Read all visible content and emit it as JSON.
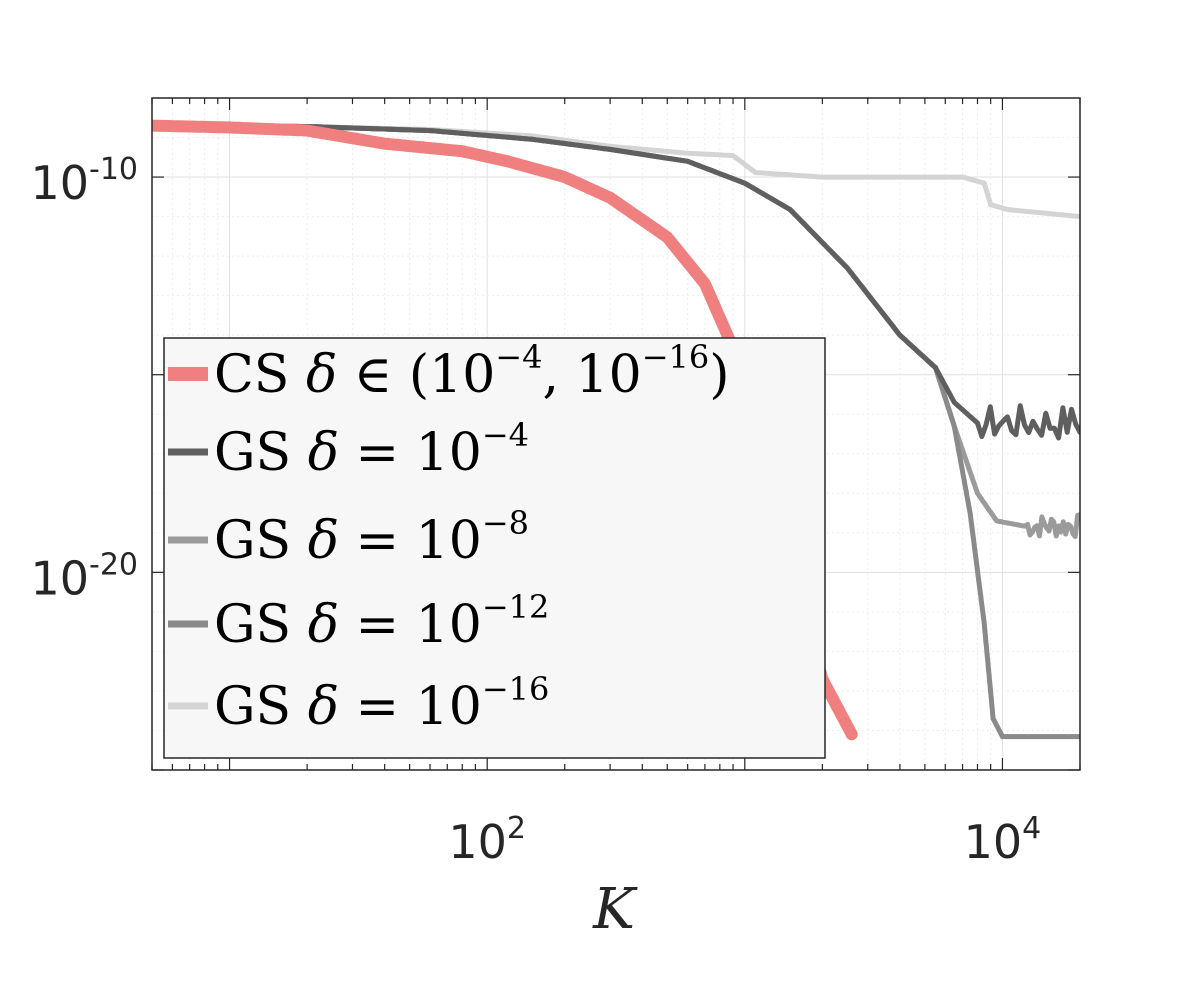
{
  "chart_data": {
    "type": "line",
    "title": "",
    "xlabel": "K",
    "ylabel": "",
    "x_scale": "log",
    "y_scale": "log",
    "xlim": [
      5,
      20000
    ],
    "ylim": [
      1e-25,
      1e-08
    ],
    "grid": true,
    "legend_position": "bottom-left",
    "x_ticks": [
      {
        "value": 100,
        "base": "10",
        "exp": "2"
      },
      {
        "value": 10000,
        "base": "10",
        "exp": "4"
      }
    ],
    "y_ticks": [
      {
        "value": 1e-10,
        "base": "10",
        "exp": "-10"
      },
      {
        "value": 1e-20,
        "base": "10",
        "exp": "-20"
      }
    ],
    "series": [
      {
        "name": "CS δ ∈ (10⁻⁴, 10⁻¹⁶)",
        "legend": {
          "prefix": "CS ",
          "symbol": "δ",
          "op": " ∈ (10",
          "sup1": "−4",
          "mid": ", 10",
          "sup2": "−16",
          "suffix": ")"
        },
        "color": "#f08080",
        "width": 12,
        "points": [
          [
            5,
            2e-09
          ],
          [
            10,
            1.8e-09
          ],
          [
            20,
            1.5e-09
          ],
          [
            40,
            7e-10
          ],
          [
            80,
            4.5e-10
          ],
          [
            120,
            2.5e-10
          ],
          [
            200,
            1e-10
          ],
          [
            300,
            3e-11
          ],
          [
            500,
            3e-12
          ],
          [
            700,
            2e-13
          ],
          [
            1000,
            1e-15
          ],
          [
            1300,
            3e-18
          ],
          [
            1600,
            5e-21
          ],
          [
            2000,
            2e-23
          ],
          [
            2600,
            8e-25
          ]
        ]
      },
      {
        "name": "GS δ = 10⁻⁴",
        "legend": {
          "prefix": "GS ",
          "symbol": "δ",
          "op": " = 10",
          "sup1": "−4",
          "mid": "",
          "sup2": "",
          "suffix": ""
        },
        "color": "#5f5f5f",
        "width": 5,
        "noise": 0.9,
        "points": [
          [
            5,
            2e-09
          ],
          [
            20,
            1.9e-09
          ],
          [
            60,
            1.5e-09
          ],
          [
            150,
            9e-10
          ],
          [
            300,
            5e-10
          ],
          [
            600,
            2.5e-10
          ],
          [
            1000,
            7e-11
          ],
          [
            1500,
            1.5e-11
          ],
          [
            2500,
            5e-13
          ],
          [
            4000,
            1e-14
          ],
          [
            5500,
            1.5e-15
          ],
          [
            6500,
            2e-16
          ],
          [
            8000,
            6e-17
          ],
          [
            20000,
            6e-17
          ]
        ]
      },
      {
        "name": "GS δ = 10⁻⁸",
        "legend": {
          "prefix": "GS ",
          "symbol": "δ",
          "op": " = 10",
          "sup1": "−8",
          "mid": "",
          "sup2": "",
          "suffix": ""
        },
        "color": "#9b9b9b",
        "width": 5,
        "noise": 0.6,
        "points": [
          [
            5,
            2e-09
          ],
          [
            20,
            1.9e-09
          ],
          [
            60,
            1.5e-09
          ],
          [
            150,
            9e-10
          ],
          [
            300,
            5e-10
          ],
          [
            600,
            2.5e-10
          ],
          [
            1000,
            7e-11
          ],
          [
            1500,
            1.5e-11
          ],
          [
            2500,
            5e-13
          ],
          [
            4000,
            1e-14
          ],
          [
            5500,
            1.5e-15
          ],
          [
            6500,
            5e-17
          ],
          [
            8000,
            1e-18
          ],
          [
            9500,
            2e-19
          ],
          [
            12000,
            1.5e-19
          ],
          [
            20000,
            1.5e-19
          ]
        ]
      },
      {
        "name": "GS δ = 10⁻¹²",
        "legend": {
          "prefix": "GS ",
          "symbol": "δ",
          "op": " = 10",
          "sup1": "−12",
          "mid": "",
          "sup2": "",
          "suffix": ""
        },
        "color": "#8a8a8a",
        "width": 5,
        "points": [
          [
            5,
            2e-09
          ],
          [
            20,
            1.9e-09
          ],
          [
            60,
            1.5e-09
          ],
          [
            150,
            9e-10
          ],
          [
            300,
            5e-10
          ],
          [
            600,
            2.5e-10
          ],
          [
            1000,
            7e-11
          ],
          [
            1500,
            1.5e-11
          ],
          [
            2500,
            5e-13
          ],
          [
            4000,
            1e-14
          ],
          [
            5500,
            1.5e-15
          ],
          [
            6500,
            5e-17
          ],
          [
            7500,
            3e-19
          ],
          [
            8500,
            5e-22
          ],
          [
            9200,
            2e-24
          ],
          [
            10000,
            7e-25
          ],
          [
            20000,
            7e-25
          ]
        ]
      },
      {
        "name": "GS δ = 10⁻¹⁶",
        "legend": {
          "prefix": "GS ",
          "symbol": "δ",
          "op": " = 10",
          "sup1": "−16",
          "mid": "",
          "sup2": "",
          "suffix": ""
        },
        "color": "#d4d4d4",
        "width": 5,
        "points": [
          [
            5,
            2e-09
          ],
          [
            20,
            1.9e-09
          ],
          [
            60,
            1.6e-09
          ],
          [
            150,
            1.1e-09
          ],
          [
            300,
            6e-10
          ],
          [
            600,
            4e-10
          ],
          [
            900,
            3.5e-10
          ],
          [
            1100,
            1.3e-10
          ],
          [
            2000,
            1e-10
          ],
          [
            5000,
            1e-10
          ],
          [
            7000,
            1e-10
          ],
          [
            8500,
            7e-11
          ],
          [
            9000,
            2e-11
          ],
          [
            10500,
            1.5e-11
          ],
          [
            20000,
            1e-11
          ]
        ]
      }
    ]
  }
}
